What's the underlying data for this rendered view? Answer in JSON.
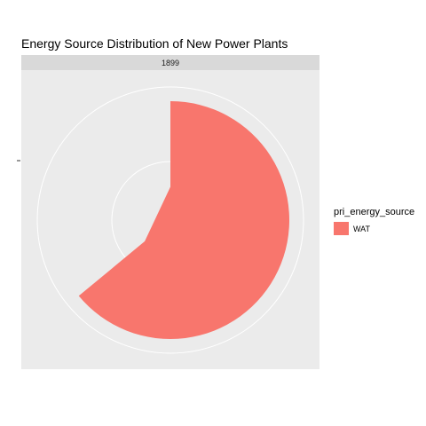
{
  "chart_data": {
    "type": "pie",
    "title": "Energy Source Distribution of New Power Plants",
    "facet": "1899",
    "legend_title": "pri_energy_source",
    "legend_position": "right",
    "coord": "polar",
    "grid": true,
    "slices": [
      {
        "label": "WAT",
        "value": 0.64,
        "inner_radius_fraction": 0.28,
        "color": "#F8766D"
      }
    ]
  },
  "colors": {
    "panel_background": "#EBEBEB",
    "strip_background": "#D9D9D9",
    "grid": "#FFFFFF"
  }
}
